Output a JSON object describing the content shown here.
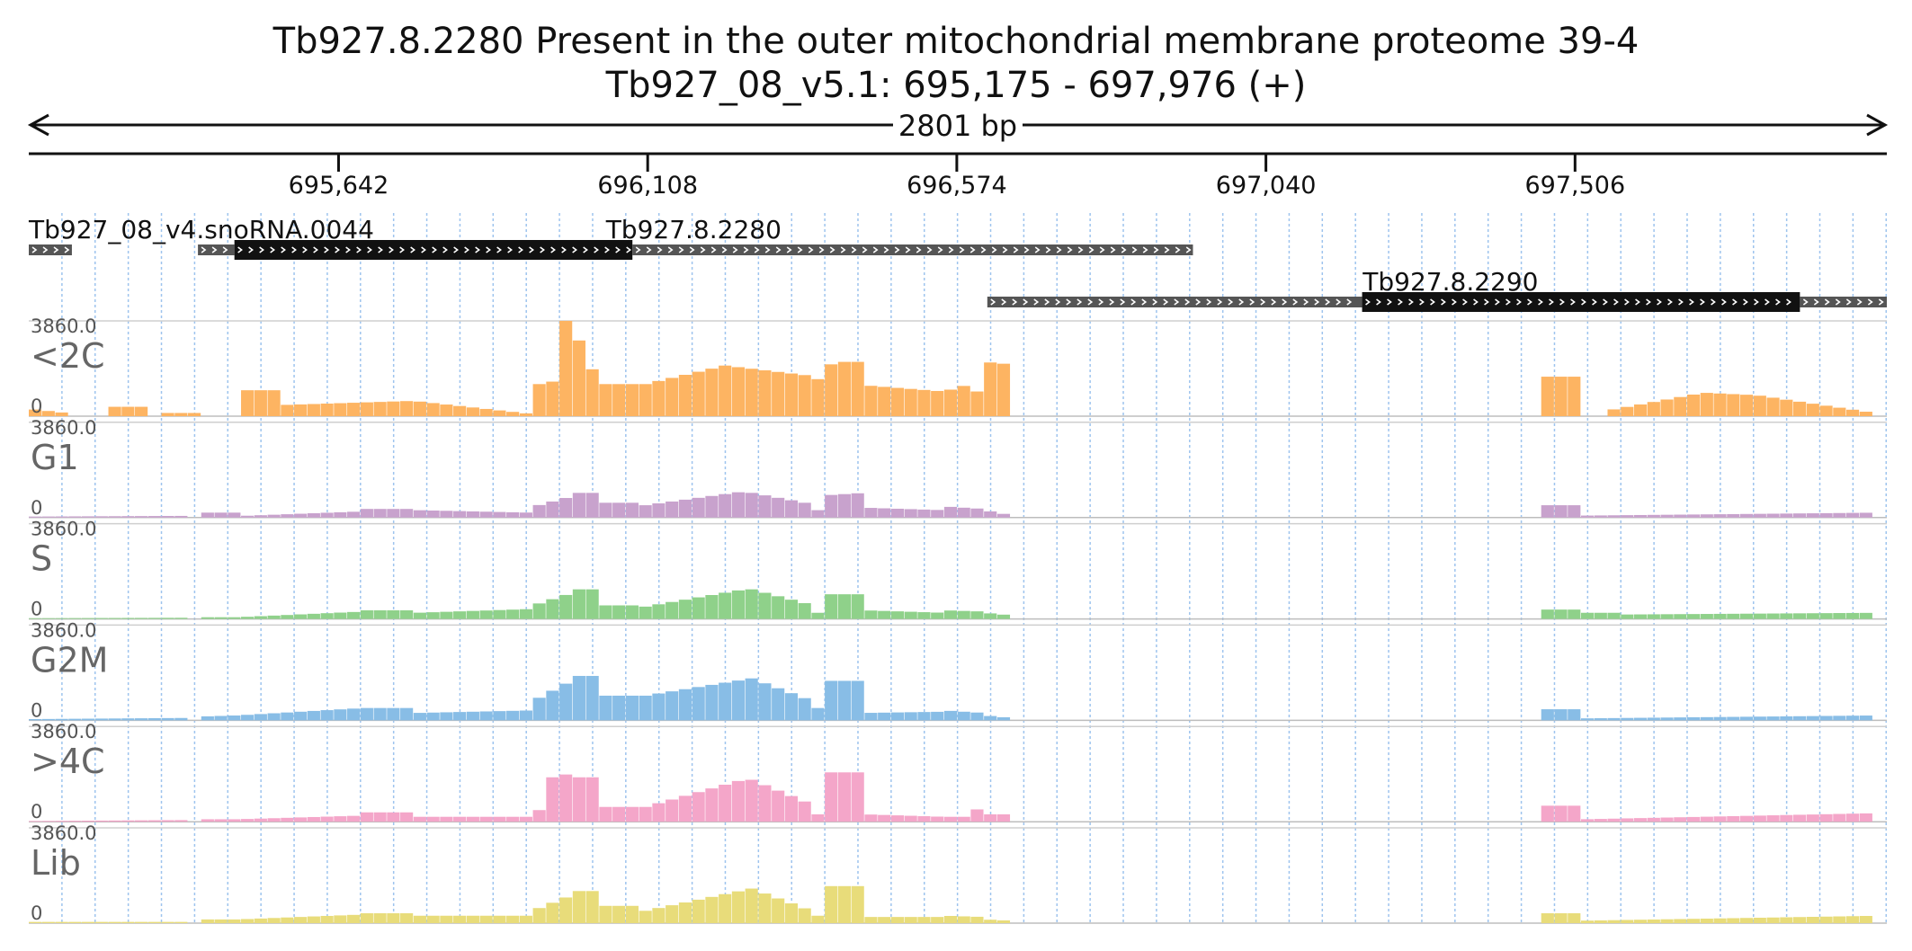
{
  "chart_data": {
    "type": "bar",
    "title": "Tb927.8.2280  Present in the outer mitochondrial membrane proteome 39-4",
    "subtitle": "Tb927_08_v5.1: 695,175 - 697,976 (+)",
    "region": {
      "chromosome": "Tb927_08_v5.1",
      "start": 695175,
      "end": 697976,
      "strand": "+",
      "length_label": "2801 bp"
    },
    "ruler_ticks": [
      {
        "pos": 695642,
        "label": "695,642"
      },
      {
        "pos": 696108,
        "label": "696,108"
      },
      {
        "pos": 696574,
        "label": "696,574"
      },
      {
        "pos": 697040,
        "label": "697,040"
      },
      {
        "pos": 697506,
        "label": "697,506"
      }
    ],
    "genes": [
      {
        "name": "Tb927_08_v4.snoRNA.0044",
        "label_pos": 695175,
        "row": 0,
        "segments": [
          {
            "start": 695175,
            "end": 695240,
            "type": "utr"
          }
        ]
      },
      {
        "name": "Tb927.8.2280",
        "label_pos": 696045,
        "row": 0,
        "segments": [
          {
            "start": 695430,
            "end": 695485,
            "type": "utr"
          },
          {
            "start": 695485,
            "end": 696085,
            "type": "cds"
          },
          {
            "start": 696085,
            "end": 696930,
            "type": "utr"
          }
        ]
      },
      {
        "name": "Tb927.8.2290",
        "label_pos": 697186,
        "row": 1,
        "segments": [
          {
            "start": 696620,
            "end": 697185,
            "type": "utr"
          },
          {
            "start": 697185,
            "end": 697845,
            "type": "cds"
          },
          {
            "start": 697845,
            "end": 697976,
            "type": "utr"
          }
        ]
      }
    ],
    "ylim": [
      0,
      3860.0
    ],
    "ymax_label": "3860.0",
    "ymin_label": "0",
    "bin_width_bp": 20,
    "x_start": 695175,
    "tracks": [
      {
        "name": "<2C",
        "color": "#fdb462",
        "shape": [
          [
            695175,
            695235,
            300,
            120
          ],
          [
            695290,
            695355,
            380,
            380
          ],
          [
            695380,
            695435,
            130,
            130
          ],
          [
            695490,
            695555,
            1050,
            1050
          ],
          [
            695555,
            695755,
            450,
            620
          ],
          [
            695755,
            695930,
            620,
            100
          ],
          [
            695930,
            695945,
            100,
            100
          ],
          [
            695945,
            695985,
            1300,
            1500
          ],
          [
            695985,
            695995,
            3860,
            3860
          ],
          [
            695995,
            696025,
            3000,
            3200
          ],
          [
            696025,
            696040,
            1900,
            1900
          ],
          [
            696040,
            696105,
            1300,
            1300
          ],
          [
            696105,
            696225,
            1300,
            2050
          ],
          [
            696225,
            696365,
            2050,
            1600
          ],
          [
            696365,
            696375,
            1500,
            1500
          ],
          [
            696375,
            696395,
            2100,
            2100
          ],
          [
            696395,
            696435,
            2200,
            2200
          ],
          [
            696435,
            696555,
            1250,
            1000
          ],
          [
            696555,
            696595,
            1000,
            1300
          ],
          [
            696595,
            696610,
            1000,
            1000
          ],
          [
            696610,
            696615,
            300,
            300
          ],
          [
            696615,
            696655,
            2200,
            2100
          ],
          [
            697465,
            697520,
            1600,
            1600
          ],
          [
            697550,
            697700,
            200,
            950
          ],
          [
            697700,
            697780,
            950,
            850
          ],
          [
            697780,
            697960,
            850,
            120
          ],
          [
            697970,
            697976,
            1700,
            1700
          ]
        ]
      },
      {
        "name": "G1",
        "color": "#c8a2cd",
        "shape": [
          [
            695175,
            695425,
            40,
            70
          ],
          [
            695430,
            695490,
            200,
            200
          ],
          [
            695490,
            695680,
            60,
            250
          ],
          [
            695680,
            695760,
            350,
            350
          ],
          [
            695760,
            695930,
            300,
            200
          ],
          [
            695930,
            696000,
            400,
            900
          ],
          [
            696000,
            696045,
            1000,
            1000
          ],
          [
            696045,
            696105,
            600,
            600
          ],
          [
            696105,
            696265,
            500,
            1100
          ],
          [
            696265,
            696365,
            1000,
            500
          ],
          [
            696365,
            696375,
            300,
            300
          ],
          [
            696375,
            696435,
            900,
            1000
          ],
          [
            696435,
            696555,
            400,
            300
          ],
          [
            696555,
            696615,
            450,
            350
          ],
          [
            696615,
            696655,
            300,
            100
          ],
          [
            697465,
            697520,
            500,
            500
          ],
          [
            697520,
            697965,
            80,
            200
          ],
          [
            697970,
            697976,
            600,
            600
          ]
        ]
      },
      {
        "name": "S",
        "color": "#8fd18a",
        "shape": [
          [
            695175,
            695425,
            30,
            50
          ],
          [
            695430,
            695490,
            70,
            70
          ],
          [
            695490,
            695680,
            70,
            300
          ],
          [
            695680,
            695760,
            350,
            350
          ],
          [
            695760,
            695930,
            250,
            400
          ],
          [
            695930,
            696000,
            500,
            1100
          ],
          [
            696000,
            696045,
            1200,
            1200
          ],
          [
            696045,
            696105,
            550,
            550
          ],
          [
            696105,
            696265,
            500,
            1250
          ],
          [
            696265,
            696365,
            1200,
            500
          ],
          [
            696365,
            696375,
            250,
            250
          ],
          [
            696375,
            696435,
            1000,
            1000
          ],
          [
            696435,
            696555,
            350,
            250
          ],
          [
            696555,
            696615,
            350,
            300
          ],
          [
            696615,
            696655,
            250,
            150
          ],
          [
            697465,
            697520,
            380,
            380
          ],
          [
            697520,
            697580,
            250,
            250
          ],
          [
            697580,
            697965,
            180,
            250
          ],
          [
            697970,
            697976,
            600,
            600
          ]
        ]
      },
      {
        "name": "G2M",
        "color": "#88bde6",
        "shape": [
          [
            695175,
            695425,
            50,
            100
          ],
          [
            695430,
            695490,
            150,
            200
          ],
          [
            695490,
            695680,
            200,
            500
          ],
          [
            695680,
            695760,
            500,
            500
          ],
          [
            695760,
            695930,
            300,
            400
          ],
          [
            695930,
            696000,
            700,
            1700
          ],
          [
            696000,
            696045,
            1800,
            1800
          ],
          [
            696045,
            696105,
            1000,
            1000
          ],
          [
            696105,
            696265,
            1000,
            1700
          ],
          [
            696265,
            696365,
            1700,
            700
          ],
          [
            696365,
            696375,
            500,
            500
          ],
          [
            696375,
            696435,
            1600,
            1600
          ],
          [
            696435,
            696555,
            300,
            350
          ],
          [
            696555,
            696615,
            400,
            300
          ],
          [
            696615,
            696655,
            200,
            100
          ],
          [
            697465,
            697520,
            450,
            450
          ],
          [
            697520,
            697965,
            80,
            200
          ],
          [
            697970,
            697976,
            450,
            450
          ]
        ]
      },
      {
        "name": ">4C",
        "color": "#f4a6c9",
        "shape": [
          [
            695175,
            695425,
            30,
            70
          ],
          [
            695430,
            695490,
            100,
            100
          ],
          [
            695490,
            695680,
            100,
            250
          ],
          [
            695680,
            695760,
            380,
            380
          ],
          [
            695760,
            695930,
            200,
            200
          ],
          [
            695930,
            695965,
            300,
            700
          ],
          [
            695965,
            696000,
            1800,
            2000
          ],
          [
            696000,
            696045,
            1800,
            1800
          ],
          [
            696045,
            696105,
            600,
            600
          ],
          [
            696105,
            696265,
            600,
            1800
          ],
          [
            696265,
            696365,
            1700,
            600
          ],
          [
            696365,
            696375,
            300,
            300
          ],
          [
            696375,
            696435,
            2000,
            2000
          ],
          [
            696435,
            696555,
            300,
            200
          ],
          [
            696555,
            696590,
            200,
            200
          ],
          [
            696590,
            696615,
            500,
            500
          ],
          [
            696615,
            696655,
            300,
            300
          ],
          [
            697465,
            697520,
            650,
            650
          ],
          [
            697520,
            697965,
            100,
            350
          ],
          [
            697970,
            697976,
            700,
            700
          ]
        ]
      },
      {
        "name": "Lib",
        "color": "#e8dc7a",
        "shape": [
          [
            695175,
            695425,
            50,
            50
          ],
          [
            695430,
            695490,
            150,
            150
          ],
          [
            695490,
            695680,
            150,
            350
          ],
          [
            695680,
            695760,
            400,
            400
          ],
          [
            695760,
            695930,
            300,
            300
          ],
          [
            695930,
            696000,
            450,
            1200
          ],
          [
            696000,
            696045,
            1300,
            1300
          ],
          [
            696045,
            696105,
            700,
            700
          ],
          [
            696105,
            696265,
            500,
            1400
          ],
          [
            696265,
            696365,
            1400,
            400
          ],
          [
            696365,
            696375,
            300,
            300
          ],
          [
            696375,
            696435,
            1500,
            1500
          ],
          [
            696435,
            696555,
            250,
            250
          ],
          [
            696555,
            696615,
            300,
            250
          ],
          [
            696615,
            696655,
            150,
            100
          ],
          [
            697465,
            697520,
            400,
            400
          ],
          [
            697520,
            697965,
            100,
            300
          ],
          [
            697970,
            697976,
            600,
            600
          ]
        ]
      }
    ],
    "grid": true
  }
}
